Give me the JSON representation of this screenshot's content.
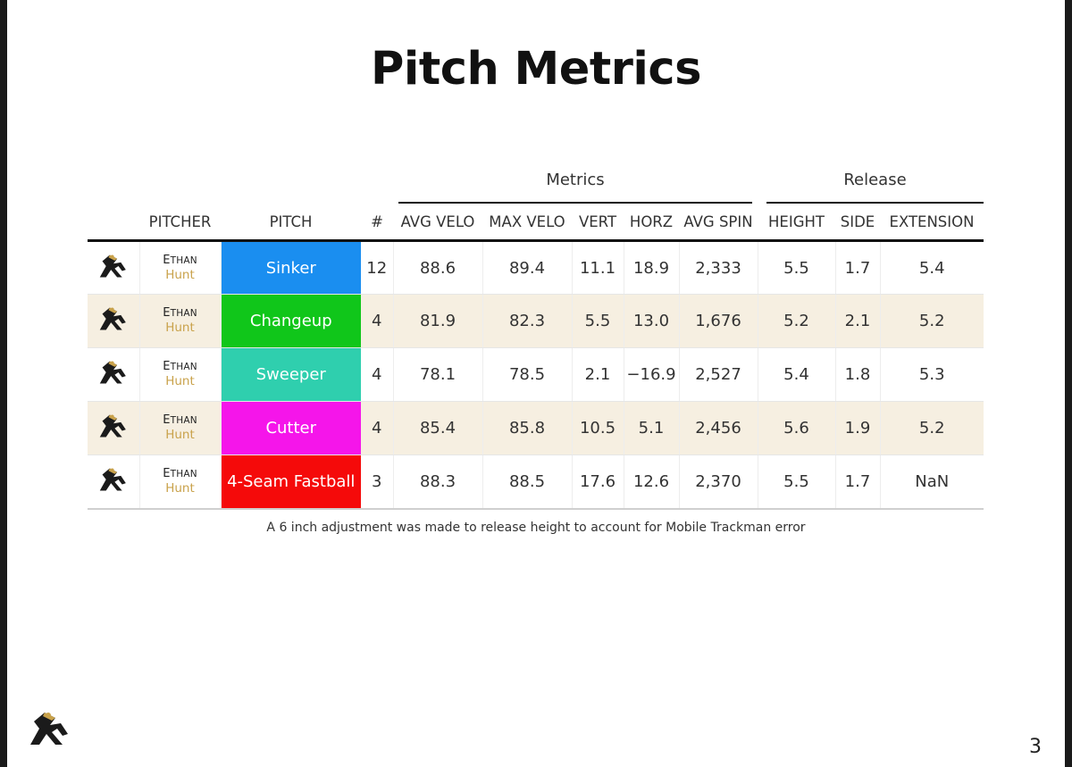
{
  "title": "Pitch Metrics",
  "groups": {
    "metrics": "Metrics",
    "release": "Release"
  },
  "columns": {
    "pitcher": "PITCHER",
    "pitch": "PITCH",
    "count": "#",
    "avg_velo": "AVG VELO",
    "max_velo": "MAX VELO",
    "vert": "VERT",
    "horz": "HORZ",
    "avg_spin": "AVG SPIN",
    "height": "HEIGHT",
    "side": "SIDE",
    "extension": "EXTENSION"
  },
  "rows": [
    {
      "first": "Ethan",
      "last": "Hunt",
      "pitch": "Sinker",
      "color": "#1a8ef0",
      "count": "12",
      "avg_velo": "88.6",
      "max_velo": "89.4",
      "vert": "11.1",
      "horz": "18.9",
      "avg_spin": "2,333",
      "height": "5.5",
      "side": "1.7",
      "extension": "5.4"
    },
    {
      "first": "Ethan",
      "last": "Hunt",
      "pitch": "Changeup",
      "color": "#10c61a",
      "count": "4",
      "avg_velo": "81.9",
      "max_velo": "82.3",
      "vert": "5.5",
      "horz": "13.0",
      "avg_spin": "1,676",
      "height": "5.2",
      "side": "2.1",
      "extension": "5.2"
    },
    {
      "first": "Ethan",
      "last": "Hunt",
      "pitch": "Sweeper",
      "color": "#2fcfae",
      "count": "4",
      "avg_velo": "78.1",
      "max_velo": "78.5",
      "vert": "2.1",
      "horz": "−16.9",
      "avg_spin": "2,527",
      "height": "5.4",
      "side": "1.8",
      "extension": "5.3"
    },
    {
      "first": "Ethan",
      "last": "Hunt",
      "pitch": "Cutter",
      "color": "#f515ea",
      "count": "4",
      "avg_velo": "85.4",
      "max_velo": "85.8",
      "vert": "10.5",
      "horz": "5.1",
      "avg_spin": "2,456",
      "height": "5.6",
      "side": "1.9",
      "extension": "5.2"
    },
    {
      "first": "Ethan",
      "last": "Hunt",
      "pitch": "4-Seam Fastball",
      "color": "#f50a0a",
      "count": "3",
      "avg_velo": "88.3",
      "max_velo": "88.5",
      "vert": "17.6",
      "horz": "12.6",
      "avg_spin": "2,370",
      "height": "5.5",
      "side": "1.7",
      "extension": "NaN"
    }
  ],
  "note": "A 6 inch adjustment was made to release height to account for Mobile Trackman error",
  "page_number": "3",
  "colors": {
    "row_alt": "#f6efe1",
    "surname": "#c9a24b",
    "logo": "#1b1b1b",
    "logo_accent": "#c9a24b"
  },
  "icons": {
    "team_logo": "team-logo-icon"
  }
}
